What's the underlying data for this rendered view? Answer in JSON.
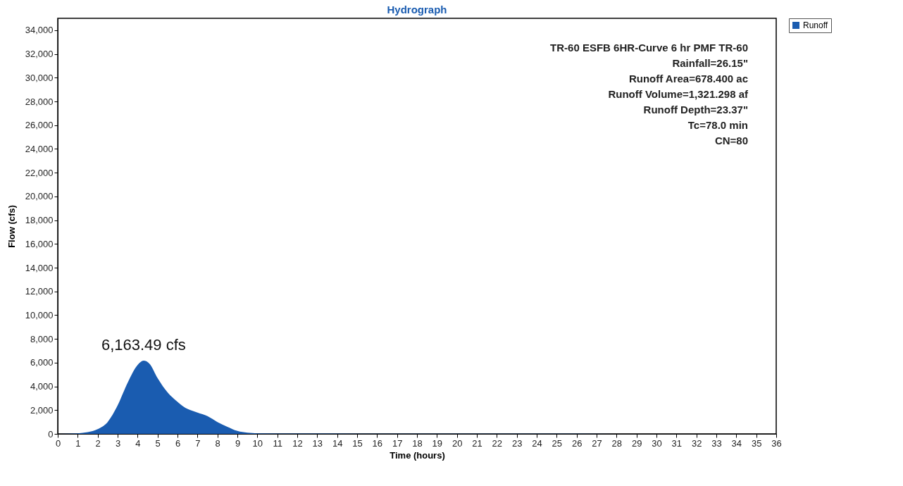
{
  "chart_data": {
    "type": "area",
    "title": "Hydrograph",
    "xlabel": "Time  (hours)",
    "ylabel": "Flow  (cfs)",
    "x": [
      0,
      1,
      1.5,
      2,
      2.5,
      3,
      3.5,
      4,
      4.3,
      4.6,
      5,
      5.5,
      6,
      6.5,
      7,
      7.5,
      8,
      8.5,
      9,
      9.5,
      10,
      12,
      16,
      20,
      24,
      28,
      32,
      36
    ],
    "series": [
      {
        "name": "Runoff",
        "color": "#1a5cb0",
        "values": [
          0,
          50,
          150,
          400,
          1000,
          2400,
          4300,
          5800,
          6163.49,
          5900,
          4700,
          3500,
          2700,
          2100,
          1800,
          1500,
          1000,
          600,
          250,
          100,
          50,
          30,
          20,
          10,
          10,
          5,
          5,
          0
        ]
      }
    ],
    "xlim": [
      0,
      36
    ],
    "xticks": [
      0,
      1,
      2,
      3,
      4,
      5,
      6,
      7,
      8,
      9,
      10,
      11,
      12,
      13,
      14,
      15,
      16,
      17,
      18,
      19,
      20,
      21,
      22,
      23,
      24,
      25,
      26,
      27,
      28,
      29,
      30,
      31,
      32,
      33,
      34,
      35,
      36
    ],
    "ylim": [
      0,
      35000
    ],
    "yticks": [
      {
        "value": 0,
        "label": "0"
      },
      {
        "value": 2000,
        "label": "2,000"
      },
      {
        "value": 4000,
        "label": "4,000"
      },
      {
        "value": 6000,
        "label": "6,000"
      },
      {
        "value": 8000,
        "label": "8,000"
      },
      {
        "value": 10000,
        "label": "10,000"
      },
      {
        "value": 12000,
        "label": "12,000"
      },
      {
        "value": 14000,
        "label": "14,000"
      },
      {
        "value": 16000,
        "label": "16,000"
      },
      {
        "value": 18000,
        "label": "18,000"
      },
      {
        "value": 20000,
        "label": "20,000"
      },
      {
        "value": 22000,
        "label": "22,000"
      },
      {
        "value": 24000,
        "label": "24,000"
      },
      {
        "value": 26000,
        "label": "26,000"
      },
      {
        "value": 28000,
        "label": "28,000"
      },
      {
        "value": 30000,
        "label": "30,000"
      },
      {
        "value": 32000,
        "label": "32,000"
      },
      {
        "value": 34000,
        "label": "34,000"
      }
    ],
    "annotations": [
      {
        "text": "6,163.49 cfs",
        "x": 4.3,
        "y": 6163.49
      },
      "TR-60 ESFB 6HR-Curve 6 hr PMF TR-60",
      "Rainfall=26.15\"",
      "Runoff Area=678.400 ac",
      "Runoff Volume=1,321.298 af",
      "Runoff Depth=23.37\"",
      "Tc=78.0 min",
      "CN=80"
    ],
    "grid": false,
    "legend": "top right",
    "marker": "none"
  }
}
